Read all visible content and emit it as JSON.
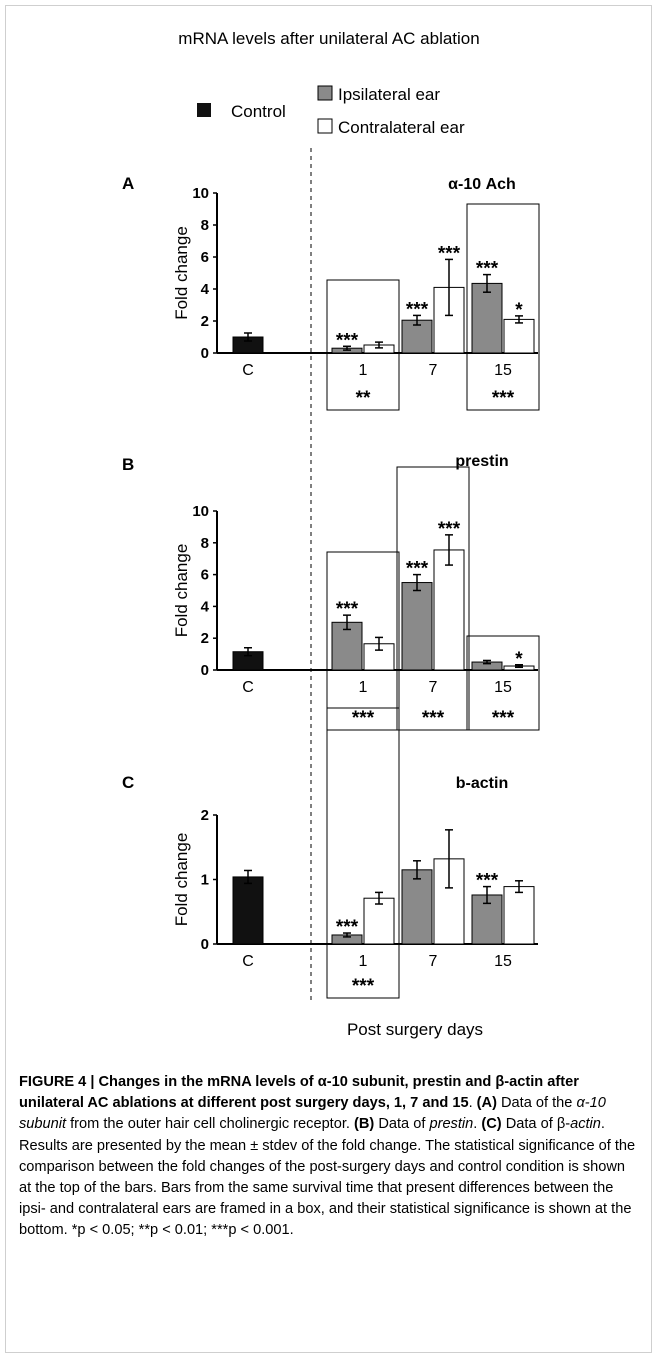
{
  "figure": {
    "title": "mRNA levels after unilateral AC ablation",
    "x_axis_label": "Post surgery days"
  },
  "legend": {
    "control": "Control",
    "ipsilateral": "Ipsilateral ear",
    "contralateral": "Contralateral ear"
  },
  "colors": {
    "control": "#111111",
    "ipsilateral": "#8a8a8a",
    "contralateral": "#ffffff"
  },
  "chart_data": [
    {
      "type": "bar",
      "panel": "A",
      "title": "α-10 Ach",
      "ylabel": "Fold change",
      "ylim": [
        0,
        10
      ],
      "yticks": [
        0,
        2,
        4,
        6,
        8,
        10
      ],
      "categories": [
        "C",
        "1",
        "7",
        "15"
      ],
      "series": [
        {
          "name": "Control",
          "values": [
            1.0,
            null,
            null,
            null
          ],
          "errors": [
            0.25,
            null,
            null,
            null
          ],
          "top_stars": [
            "",
            "",
            "",
            ""
          ]
        },
        {
          "name": "Ipsilateral ear",
          "values": [
            null,
            0.3,
            2.05,
            4.35
          ],
          "errors": [
            null,
            0.12,
            0.3,
            0.55
          ],
          "top_stars": [
            "",
            "***",
            "***",
            "***"
          ]
        },
        {
          "name": "Contralateral ear",
          "values": [
            null,
            0.5,
            4.1,
            2.1
          ],
          "errors": [
            null,
            0.18,
            1.75,
            0.22
          ],
          "top_stars": [
            "",
            "",
            "***",
            "*"
          ]
        }
      ],
      "boxed_days": [
        "1",
        "15"
      ],
      "bottom_stars": {
        "1": "**",
        "15": "***"
      }
    },
    {
      "type": "bar",
      "panel": "B",
      "title": "prestin",
      "ylabel": "Fold change",
      "ylim": [
        0,
        10
      ],
      "yticks": [
        0,
        2,
        4,
        6,
        8,
        10
      ],
      "categories": [
        "C",
        "1",
        "7",
        "15"
      ],
      "series": [
        {
          "name": "Control",
          "values": [
            1.15,
            null,
            null,
            null
          ],
          "errors": [
            0.25,
            null,
            null,
            null
          ],
          "top_stars": [
            "",
            "",
            "",
            ""
          ]
        },
        {
          "name": "Ipsilateral ear",
          "values": [
            null,
            3.0,
            5.5,
            0.5
          ],
          "errors": [
            null,
            0.45,
            0.5,
            0.1
          ],
          "top_stars": [
            "",
            "***",
            "***",
            ""
          ]
        },
        {
          "name": "Contralateral ear",
          "values": [
            null,
            1.65,
            7.55,
            0.25
          ],
          "errors": [
            null,
            0.4,
            0.95,
            0.08
          ],
          "top_stars": [
            "",
            "",
            "***",
            "*"
          ]
        }
      ],
      "boxed_days": [
        "1",
        "7",
        "15"
      ],
      "bottom_stars": {
        "1": "***",
        "7": "***",
        "15": "***"
      }
    },
    {
      "type": "bar",
      "panel": "C",
      "title": "b-actin",
      "ylabel": "Fold change",
      "ylim": [
        0,
        2
      ],
      "yticks": [
        0,
        1,
        2
      ],
      "categories": [
        "C",
        "1",
        "7",
        "15"
      ],
      "series": [
        {
          "name": "Control",
          "values": [
            1.04,
            null,
            null,
            null
          ],
          "errors": [
            0.1,
            null,
            null,
            null
          ],
          "top_stars": [
            "",
            "",
            "",
            ""
          ]
        },
        {
          "name": "Ipsilateral ear",
          "values": [
            null,
            0.14,
            1.15,
            0.76
          ],
          "errors": [
            null,
            0.03,
            0.14,
            0.13
          ],
          "top_stars": [
            "",
            "***",
            "",
            "***"
          ]
        },
        {
          "name": "Contralateral ear",
          "values": [
            null,
            0.71,
            1.32,
            0.89
          ],
          "errors": [
            null,
            0.09,
            0.45,
            0.09
          ],
          "top_stars": [
            "",
            "",
            "",
            ""
          ]
        }
      ],
      "boxed_days": [
        "1"
      ],
      "bottom_stars": {
        "1": "***"
      }
    }
  ],
  "caption": {
    "label": "FIGURE 4 | ",
    "headline_1": "Changes in the mRNA levels of ",
    "alpha": "α",
    "headline_2": "-10 subunit, prestin and ",
    "beta": "β",
    "headline_3": "-actin after unilateral AC ablations at different post surgery days, 1, 7 and 15",
    "text_a_label": "(A)",
    "text_a_1": " Data of the ",
    "text_a_italic": "α-10 subunit",
    "text_a_2": " from the outer hair cell cholinergic receptor. ",
    "text_b_label": "(B)",
    "text_b_1": " Data of ",
    "text_b_italic": "prestin",
    "text_c_label": "(C)",
    "text_c_1": " Data of β-",
    "text_c_italic": "actin",
    "body": ". Results are presented by the mean ± stdev of the fold change. The statistical significance of the comparison between the fold changes of the post-surgery days and control condition is shown at the top of the bars. Bars from the same survival time that present differences between the ipsi- and contralateral ears are framed in a box, and their statistical significance is shown at the bottom.",
    "sig_1": " *p < 0.05; **p < 0.01; ***p < 0.001."
  }
}
